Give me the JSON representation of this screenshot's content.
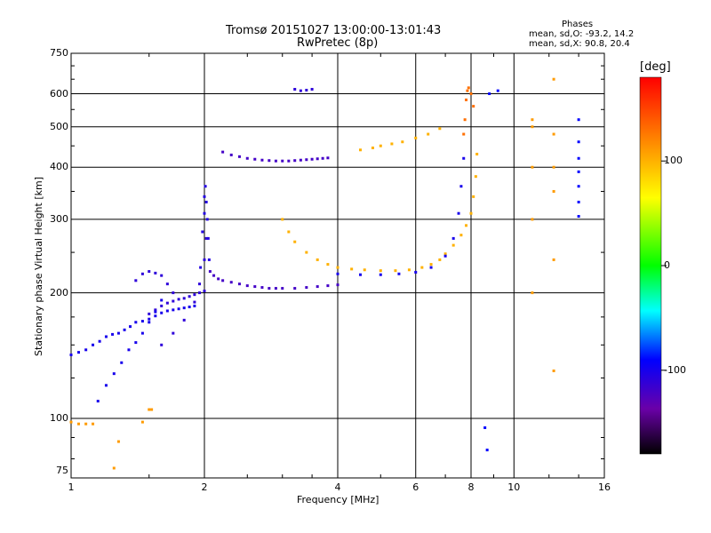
{
  "chart_data": {
    "type": "scatter",
    "title": "Tromsø 20151027 13:00:00-13:01:43",
    "subtitle": "RwPretec (8p)",
    "xlabel": "Frequency [MHz]",
    "ylabel": "Stationary phase Virtual Height [km]",
    "xscale": "log",
    "yscale": "log",
    "xlim": [
      1,
      16
    ],
    "ylim": [
      72,
      750
    ],
    "x_ticks": [
      1,
      2,
      4,
      6,
      8,
      10,
      16
    ],
    "x_tick_labels": [
      "1",
      "2",
      "4",
      "6",
      "8",
      "10",
      "16"
    ],
    "y_ticks": [
      75,
      100,
      200,
      300,
      400,
      500,
      600,
      750
    ],
    "y_tick_labels": [
      "75",
      "100",
      "200",
      "300",
      "400",
      "500",
      "600",
      "750"
    ],
    "grid": true,
    "phases_stats": {
      "title": "Phases",
      "line1": "mean, sd,O:  -93.2, 14.2",
      "line2": "mean, sd,X:  90.8, 20.4"
    },
    "colorbar": {
      "label": "[deg]",
      "range": [
        -180,
        180
      ],
      "ticks": [
        100,
        0,
        -100
      ],
      "tick_labels": [
        "100",
        "0",
        "-100"
      ]
    },
    "series": [
      {
        "x": [
          1.0,
          1.04,
          1.08,
          1.12,
          1.16,
          1.2,
          1.24,
          1.28,
          1.32,
          1.36,
          1.4,
          1.45,
          1.5,
          1.55,
          1.6,
          1.65,
          1.7,
          1.75,
          1.8,
          1.85,
          1.9
        ],
        "y": [
          142,
          144,
          146,
          150,
          153,
          157,
          159,
          160,
          163,
          166,
          170,
          171,
          173,
          176,
          179,
          181,
          182,
          183,
          184,
          185,
          186
        ],
        "phase": -100
      },
      {
        "x": [
          1.5,
          1.55,
          1.6,
          1.65,
          1.7,
          1.75,
          1.8,
          1.85,
          1.9,
          1.95,
          2.0
        ],
        "y": [
          178,
          182,
          186,
          189,
          191,
          193,
          194,
          196,
          198,
          200,
          202
        ],
        "phase": -110
      },
      {
        "x": [
          1.15,
          1.2,
          1.25,
          1.3,
          1.35,
          1.4,
          1.45,
          1.5,
          1.55,
          1.6
        ],
        "y": [
          110,
          120,
          128,
          136,
          146,
          152,
          160,
          170,
          180,
          192
        ],
        "phase": -100
      },
      {
        "x": [
          1.4,
          1.45,
          1.5,
          1.55,
          1.6,
          1.65,
          1.7
        ],
        "y": [
          214,
          222,
          225,
          223,
          220,
          210,
          200
        ],
        "phase": -110
      },
      {
        "x": [
          1.6,
          1.7,
          1.8,
          1.9,
          1.95,
          2.0,
          2.02
        ],
        "y": [
          150,
          160,
          172,
          190,
          210,
          240,
          270
        ],
        "phase": -110
      },
      {
        "x": [
          1.96,
          1.98,
          2.0,
          2.0,
          2.01,
          2.02,
          2.03,
          2.04,
          2.05
        ],
        "y": [
          230,
          280,
          310,
          340,
          360,
          330,
          300,
          270,
          240
        ],
        "phase": -105
      },
      {
        "x": [
          2.06,
          2.1,
          2.15,
          2.2,
          2.3,
          2.4,
          2.5,
          2.6,
          2.7,
          2.8,
          2.9,
          3.0,
          3.2,
          3.4,
          3.6,
          3.8,
          4.0
        ],
        "y": [
          225,
          220,
          216,
          214,
          212,
          210,
          208,
          207,
          206,
          205,
          205,
          205,
          205,
          206,
          207,
          208,
          209
        ],
        "phase": -120
      },
      {
        "x": [
          2.2,
          2.3,
          2.4,
          2.5,
          2.6,
          2.7,
          2.8,
          2.9,
          3.0,
          3.1,
          3.2,
          3.3,
          3.4,
          3.5,
          3.6,
          3.7,
          3.8
        ],
        "y": [
          435,
          428,
          424,
          420,
          418,
          416,
          415,
          414,
          414,
          414,
          415,
          416,
          417,
          418,
          419,
          420,
          421
        ],
        "phase": -120
      },
      {
        "x": [
          3.2,
          3.3,
          3.4,
          3.5
        ],
        "y": [
          615,
          610,
          612,
          615
        ],
        "phase": -110
      },
      {
        "x": [
          4.5,
          4.8,
          5.0,
          5.3,
          5.6,
          6.0,
          6.4,
          6.8
        ],
        "y": [
          440,
          445,
          450,
          455,
          460,
          470,
          480,
          495
        ],
        "phase": 100
      },
      {
        "x": [
          3.0,
          3.1,
          3.2,
          3.4,
          3.6,
          3.8,
          4.0,
          4.3,
          4.6,
          5.0,
          5.4,
          5.8,
          6.2,
          6.5,
          6.8,
          7.0,
          7.3,
          7.6,
          7.8,
          8.0,
          8.1,
          8.2,
          8.25
        ],
        "y": [
          300,
          280,
          265,
          250,
          240,
          234,
          230,
          228,
          227,
          226,
          226,
          227,
          230,
          234,
          240,
          248,
          260,
          275,
          290,
          310,
          340,
          380,
          430
        ],
        "phase": 100
      },
      {
        "x": [
          4.0,
          4.5,
          5.0,
          5.5,
          6.0,
          6.5,
          7.0,
          7.3,
          7.5,
          7.6,
          7.7
        ],
        "y": [
          222,
          221,
          221,
          222,
          224,
          230,
          245,
          270,
          310,
          360,
          420
        ],
        "phase": -100
      },
      {
        "x": [
          7.7,
          7.75,
          7.8,
          7.85,
          7.9,
          8.0,
          8.1
        ],
        "y": [
          480,
          520,
          580,
          610,
          620,
          600,
          560
        ],
        "phase": 130
      },
      {
        "x": [
          8.6,
          8.7,
          8.8,
          9.2
        ],
        "y": [
          95,
          84,
          600,
          610
        ],
        "phase": -90
      },
      {
        "x": [
          11.0,
          11.0,
          11.0,
          11.0,
          11.0
        ],
        "y": [
          520,
          500,
          400,
          300,
          200
        ],
        "phase": 110
      },
      {
        "x": [
          12.3,
          12.3,
          12.3,
          12.3,
          12.3,
          12.3
        ],
        "y": [
          650,
          480,
          400,
          350,
          240,
          130
        ],
        "phase": 110
      },
      {
        "x": [
          14.0,
          14.0,
          14.0,
          14.0,
          14.0,
          14.0,
          14.0
        ],
        "y": [
          520,
          460,
          420,
          390,
          360,
          330,
          305
        ],
        "phase": -90
      },
      {
        "x": [
          1.0,
          1.04,
          1.08,
          1.12,
          1.25,
          1.28,
          1.45,
          1.5,
          1.52
        ],
        "y": [
          98,
          97,
          97,
          97,
          76,
          88,
          98,
          105,
          105
        ],
        "phase": 110
      }
    ]
  }
}
